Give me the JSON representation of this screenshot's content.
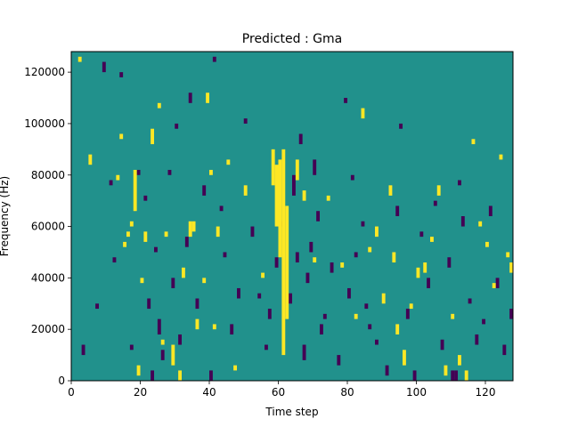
{
  "chart_data": {
    "type": "heatmap",
    "title": "Predicted : Gma",
    "xlabel": "Time step",
    "ylabel": "Frequency (Hz)",
    "xlim": [
      0,
      128
    ],
    "ylim": [
      0,
      128000
    ],
    "x_ticks": [
      0,
      20,
      40,
      60,
      80,
      100,
      120
    ],
    "y_ticks": [
      0,
      20000,
      40000,
      60000,
      80000,
      100000,
      120000
    ],
    "x_tick_labels": [
      "0",
      "20",
      "40",
      "60",
      "80",
      "100",
      "120"
    ],
    "y_tick_labels": [
      "0",
      "20000",
      "40000",
      "60000",
      "80000",
      "100000",
      "120000"
    ],
    "grid": false,
    "legend": "none",
    "colormap": "viridis",
    "colors": {
      "background": "#21918c",
      "high": "#fde725",
      "low": "#440154"
    },
    "levels": {
      "background": 0,
      "high": 1,
      "low": -1
    },
    "bin_width_hz": 2000,
    "note_values": "cells listed as [time_step, freq_start_hz, freq_end_hz]",
    "high_cells": [
      [
        2,
        124000,
        126000
      ],
      [
        5,
        84000,
        88000
      ],
      [
        13,
        78000,
        80000
      ],
      [
        14,
        94000,
        96000
      ],
      [
        15,
        52000,
        54000
      ],
      [
        16,
        56000,
        58000
      ],
      [
        17,
        60000,
        62000
      ],
      [
        18,
        66000,
        82000
      ],
      [
        19,
        2000,
        6000
      ],
      [
        20,
        38000,
        40000
      ],
      [
        21,
        54000,
        58000
      ],
      [
        23,
        92000,
        98000
      ],
      [
        25,
        106000,
        108000
      ],
      [
        26,
        14000,
        16000
      ],
      [
        27,
        56000,
        58000
      ],
      [
        29,
        6000,
        14000
      ],
      [
        31,
        0,
        4000
      ],
      [
        32,
        40000,
        44000
      ],
      [
        34,
        56000,
        62000
      ],
      [
        35,
        58000,
        62000
      ],
      [
        36,
        20000,
        24000
      ],
      [
        38,
        38000,
        40000
      ],
      [
        39,
        108000,
        112000
      ],
      [
        40,
        80000,
        82000
      ],
      [
        41,
        20000,
        22000
      ],
      [
        42,
        56000,
        60000
      ],
      [
        45,
        84000,
        86000
      ],
      [
        47,
        4000,
        6000
      ],
      [
        50,
        72000,
        76000
      ],
      [
        55,
        40000,
        42000
      ],
      [
        58,
        76000,
        90000
      ],
      [
        59,
        60000,
        84000
      ],
      [
        60,
        48000,
        86000
      ],
      [
        61,
        10000,
        90000
      ],
      [
        62,
        24000,
        68000
      ],
      [
        65,
        78000,
        86000
      ],
      [
        67,
        70000,
        74000
      ],
      [
        70,
        46000,
        48000
      ],
      [
        74,
        70000,
        72000
      ],
      [
        78,
        44000,
        46000
      ],
      [
        82,
        24000,
        26000
      ],
      [
        84,
        102000,
        106000
      ],
      [
        86,
        50000,
        52000
      ],
      [
        88,
        56000,
        60000
      ],
      [
        90,
        30000,
        34000
      ],
      [
        92,
        72000,
        76000
      ],
      [
        93,
        46000,
        50000
      ],
      [
        94,
        18000,
        22000
      ],
      [
        96,
        6000,
        12000
      ],
      [
        98,
        28000,
        30000
      ],
      [
        100,
        40000,
        44000
      ],
      [
        102,
        42000,
        46000
      ],
      [
        104,
        54000,
        56000
      ],
      [
        106,
        72000,
        76000
      ],
      [
        108,
        2000,
        6000
      ],
      [
        110,
        24000,
        26000
      ],
      [
        112,
        6000,
        10000
      ],
      [
        114,
        0,
        4000
      ],
      [
        116,
        92000,
        94000
      ],
      [
        118,
        60000,
        62000
      ],
      [
        120,
        52000,
        54000
      ],
      [
        122,
        36000,
        38000
      ],
      [
        124,
        86000,
        88000
      ],
      [
        126,
        48000,
        50000
      ],
      [
        127,
        42000,
        46000
      ]
    ],
    "low_cells": [
      [
        3,
        10000,
        14000
      ],
      [
        7,
        28000,
        30000
      ],
      [
        9,
        120000,
        124000
      ],
      [
        11,
        76000,
        78000
      ],
      [
        12,
        46000,
        48000
      ],
      [
        14,
        118000,
        120000
      ],
      [
        17,
        12000,
        14000
      ],
      [
        19,
        80000,
        82000
      ],
      [
        21,
        70000,
        72000
      ],
      [
        22,
        28000,
        32000
      ],
      [
        23,
        0,
        4000
      ],
      [
        24,
        50000,
        52000
      ],
      [
        25,
        18000,
        24000
      ],
      [
        26,
        8000,
        12000
      ],
      [
        28,
        80000,
        82000
      ],
      [
        29,
        36000,
        40000
      ],
      [
        30,
        98000,
        100000
      ],
      [
        31,
        14000,
        18000
      ],
      [
        33,
        52000,
        56000
      ],
      [
        34,
        108000,
        112000
      ],
      [
        36,
        28000,
        32000
      ],
      [
        38,
        72000,
        76000
      ],
      [
        40,
        0,
        4000
      ],
      [
        41,
        124000,
        126000
      ],
      [
        43,
        66000,
        68000
      ],
      [
        44,
        48000,
        50000
      ],
      [
        46,
        18000,
        22000
      ],
      [
        48,
        32000,
        36000
      ],
      [
        50,
        100000,
        102000
      ],
      [
        52,
        56000,
        60000
      ],
      [
        54,
        32000,
        34000
      ],
      [
        56,
        12000,
        14000
      ],
      [
        57,
        24000,
        28000
      ],
      [
        59,
        44000,
        48000
      ],
      [
        60,
        60000,
        62000
      ],
      [
        63,
        30000,
        34000
      ],
      [
        64,
        72000,
        80000
      ],
      [
        65,
        46000,
        50000
      ],
      [
        66,
        92000,
        96000
      ],
      [
        67,
        8000,
        14000
      ],
      [
        68,
        38000,
        42000
      ],
      [
        69,
        50000,
        54000
      ],
      [
        70,
        80000,
        86000
      ],
      [
        71,
        62000,
        66000
      ],
      [
        72,
        18000,
        22000
      ],
      [
        73,
        24000,
        26000
      ],
      [
        75,
        42000,
        46000
      ],
      [
        77,
        6000,
        10000
      ],
      [
        79,
        108000,
        110000
      ],
      [
        80,
        32000,
        36000
      ],
      [
        81,
        78000,
        80000
      ],
      [
        82,
        48000,
        50000
      ],
      [
        84,
        60000,
        62000
      ],
      [
        85,
        28000,
        30000
      ],
      [
        86,
        20000,
        22000
      ],
      [
        88,
        14000,
        16000
      ],
      [
        91,
        2000,
        6000
      ],
      [
        94,
        64000,
        68000
      ],
      [
        95,
        98000,
        100000
      ],
      [
        97,
        24000,
        28000
      ],
      [
        99,
        0,
        4000
      ],
      [
        101,
        56000,
        58000
      ],
      [
        103,
        36000,
        40000
      ],
      [
        105,
        68000,
        70000
      ],
      [
        107,
        12000,
        16000
      ],
      [
        109,
        44000,
        48000
      ],
      [
        110,
        0,
        4000
      ],
      [
        111,
        0,
        4000
      ],
      [
        112,
        76000,
        78000
      ],
      [
        113,
        60000,
        64000
      ],
      [
        115,
        30000,
        32000
      ],
      [
        117,
        14000,
        18000
      ],
      [
        119,
        22000,
        24000
      ],
      [
        121,
        64000,
        68000
      ],
      [
        123,
        36000,
        40000
      ],
      [
        125,
        10000,
        14000
      ],
      [
        127,
        24000,
        28000
      ]
    ]
  }
}
